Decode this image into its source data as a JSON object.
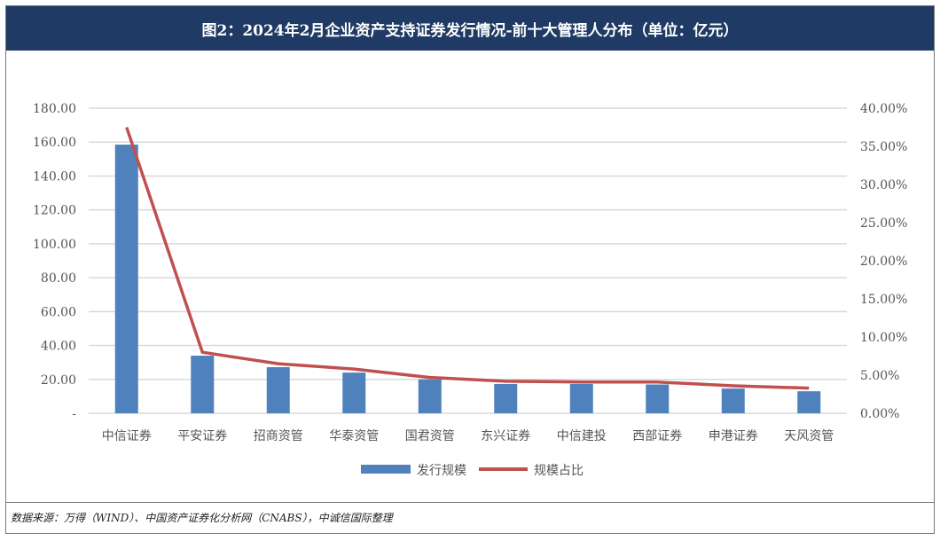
{
  "header": {
    "title": "图2：2024年2月企业资产支持证券发行情况-前十大管理人分布（单位：亿元）"
  },
  "footer": {
    "source": "数据来源：万得（WIND）、中国资产证券化分析网（CNABS），中诚信国际整理"
  },
  "chart_data": {
    "type": "bar+line",
    "title": "图2：2024年2月企业资产支持证券发行情况-前十大管理人分布（单位：亿元）",
    "categories": [
      "中信证券",
      "平安证券",
      "招商资管",
      "华泰资管",
      "国君资管",
      "东兴证券",
      "中信建投",
      "西部证券",
      "申港证券",
      "天风资管"
    ],
    "series": [
      {
        "name": "发行规模",
        "type": "bar",
        "axis": "left",
        "color": "#4f81bd",
        "values": [
          158.5,
          34,
          27.2,
          24,
          20,
          17.3,
          17.3,
          17,
          14.6,
          13
        ]
      },
      {
        "name": "规模占比",
        "type": "line",
        "axis": "right",
        "color": "#c0504d",
        "values": [
          37.5,
          8.0,
          6.5,
          5.8,
          4.7,
          4.2,
          4.1,
          4.1,
          3.6,
          3.3
        ]
      }
    ],
    "left_axis": {
      "ylim": [
        0,
        180
      ],
      "ticks": [
        "-",
        "20.00",
        "40.00",
        "60.00",
        "80.00",
        "100.00",
        "120.00",
        "140.00",
        "160.00",
        "180.00"
      ]
    },
    "right_axis": {
      "ylim": [
        0,
        40
      ],
      "ticks": [
        "0.00%",
        "5.00%",
        "10.00%",
        "15.00%",
        "20.00%",
        "25.00%",
        "30.00%",
        "35.00%",
        "40.00%"
      ]
    },
    "legend": {
      "placement": "bottom",
      "items": [
        "发行规模",
        "规模占比"
      ]
    },
    "grid": true
  }
}
